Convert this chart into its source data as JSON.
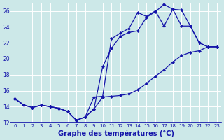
{
  "xlabel": "Graphe des températures (°C)",
  "xlim": [
    -0.5,
    23.5
  ],
  "ylim": [
    12,
    27
  ],
  "yticks": [
    12,
    14,
    16,
    18,
    20,
    22,
    24,
    26
  ],
  "xticks": [
    0,
    1,
    2,
    3,
    4,
    5,
    6,
    7,
    8,
    9,
    10,
    11,
    12,
    13,
    14,
    15,
    16,
    17,
    18,
    19,
    20,
    21,
    22,
    23
  ],
  "bg_color": "#cce8e8",
  "line_color": "#1414aa",
  "line1_x": [
    0,
    1,
    2,
    3,
    4,
    5,
    6,
    7,
    8,
    9,
    10,
    11,
    12,
    13,
    14,
    15,
    16,
    17,
    18,
    19,
    20,
    21,
    22,
    23
  ],
  "line1_y": [
    15.0,
    14.2,
    13.9,
    14.2,
    14.0,
    13.8,
    13.4,
    12.3,
    12.7,
    13.7,
    19.0,
    21.3,
    22.8,
    23.3,
    23.5,
    25.2,
    25.9,
    26.8,
    26.2,
    26.1,
    24.1,
    22.0,
    21.5,
    21.5
  ],
  "line2_x": [
    0,
    1,
    2,
    3,
    4,
    5,
    6,
    7,
    8,
    9,
    10,
    11,
    12,
    13,
    14,
    15,
    16,
    17,
    18,
    19,
    20,
    21,
    22,
    23
  ],
  "line2_y": [
    15.0,
    14.2,
    13.9,
    14.2,
    14.0,
    13.8,
    13.4,
    12.3,
    12.7,
    13.7,
    15.2,
    15.3,
    15.4,
    15.6,
    16.1,
    16.9,
    17.8,
    18.6,
    19.6,
    20.4,
    20.8,
    21.0,
    21.5,
    21.5
  ],
  "line3_x": [
    0,
    1,
    2,
    3,
    4,
    5,
    6,
    7,
    8,
    9,
    10,
    11,
    12,
    13,
    14,
    15,
    16,
    17,
    18,
    19,
    20,
    21,
    22,
    23
  ],
  "line3_y": [
    15.0,
    14.2,
    13.9,
    14.2,
    14.0,
    13.8,
    13.4,
    12.3,
    12.7,
    15.2,
    15.3,
    22.5,
    23.2,
    23.8,
    25.8,
    25.3,
    26.0,
    24.1,
    26.2,
    24.1,
    24.1,
    22.0,
    21.5,
    21.5
  ]
}
